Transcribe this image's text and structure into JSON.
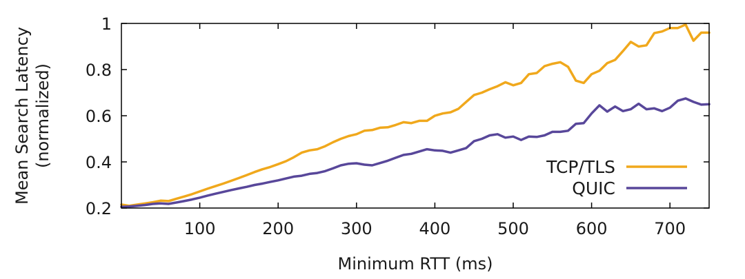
{
  "chart_data": {
    "type": "line",
    "title": "",
    "xlabel": "Minimum RTT (ms)",
    "ylabel_lines": [
      "Mean Search Latency",
      "(normalized)"
    ],
    "xlim": [
      0,
      750
    ],
    "ylim": [
      0.2,
      1.0
    ],
    "x_ticks": [
      100,
      200,
      300,
      400,
      500,
      600,
      700
    ],
    "y_ticks": [
      0.2,
      0.4,
      0.6,
      0.8,
      1.0
    ],
    "y_tick_labels": [
      "0.2",
      "0.4",
      "0.6",
      "0.8",
      "1"
    ],
    "grid": false,
    "legend_position": "bottom-right",
    "x": [
      0,
      10,
      20,
      30,
      40,
      50,
      60,
      70,
      80,
      90,
      100,
      110,
      120,
      130,
      140,
      150,
      160,
      170,
      180,
      190,
      200,
      210,
      220,
      230,
      240,
      250,
      260,
      270,
      280,
      290,
      300,
      310,
      320,
      330,
      340,
      350,
      360,
      370,
      380,
      390,
      400,
      410,
      420,
      430,
      440,
      450,
      460,
      470,
      480,
      490,
      500,
      510,
      520,
      530,
      540,
      550,
      560,
      570,
      580,
      590,
      600,
      610,
      620,
      630,
      640,
      650,
      660,
      670,
      680,
      690,
      700,
      710,
      720,
      730,
      740,
      750
    ],
    "series": [
      {
        "name": "TCP/TLS",
        "color": "#f0a81c",
        "values": [
          0.215,
          0.21,
          0.215,
          0.22,
          0.225,
          0.232,
          0.23,
          0.24,
          0.25,
          0.26,
          0.272,
          0.284,
          0.295,
          0.306,
          0.318,
          0.33,
          0.343,
          0.356,
          0.368,
          0.378,
          0.39,
          0.403,
          0.42,
          0.44,
          0.45,
          0.455,
          0.468,
          0.485,
          0.5,
          0.512,
          0.52,
          0.535,
          0.538,
          0.548,
          0.55,
          0.56,
          0.572,
          0.568,
          0.578,
          0.578,
          0.6,
          0.61,
          0.615,
          0.63,
          0.66,
          0.69,
          0.7,
          0.715,
          0.728,
          0.745,
          0.732,
          0.742,
          0.78,
          0.785,
          0.815,
          0.825,
          0.832,
          0.812,
          0.752,
          0.742,
          0.78,
          0.795,
          0.828,
          0.842,
          0.88,
          0.92,
          0.9,
          0.905,
          0.958,
          0.965,
          0.98,
          0.98,
          0.995,
          0.925,
          0.96,
          0.96
        ]
      },
      {
        "name": "QUIC",
        "color": "#58479a",
        "values": [
          0.205,
          0.207,
          0.21,
          0.213,
          0.218,
          0.22,
          0.218,
          0.224,
          0.23,
          0.237,
          0.245,
          0.254,
          0.262,
          0.27,
          0.278,
          0.285,
          0.292,
          0.3,
          0.306,
          0.313,
          0.32,
          0.328,
          0.336,
          0.34,
          0.348,
          0.352,
          0.36,
          0.372,
          0.385,
          0.392,
          0.394,
          0.388,
          0.385,
          0.395,
          0.405,
          0.418,
          0.43,
          0.435,
          0.445,
          0.455,
          0.45,
          0.448,
          0.44,
          0.45,
          0.46,
          0.49,
          0.5,
          0.515,
          0.52,
          0.505,
          0.51,
          0.495,
          0.51,
          0.508,
          0.515,
          0.53,
          0.53,
          0.535,
          0.565,
          0.568,
          0.61,
          0.645,
          0.618,
          0.64,
          0.62,
          0.628,
          0.652,
          0.628,
          0.632,
          0.62,
          0.635,
          0.665,
          0.675,
          0.66,
          0.648,
          0.65
        ]
      }
    ]
  }
}
